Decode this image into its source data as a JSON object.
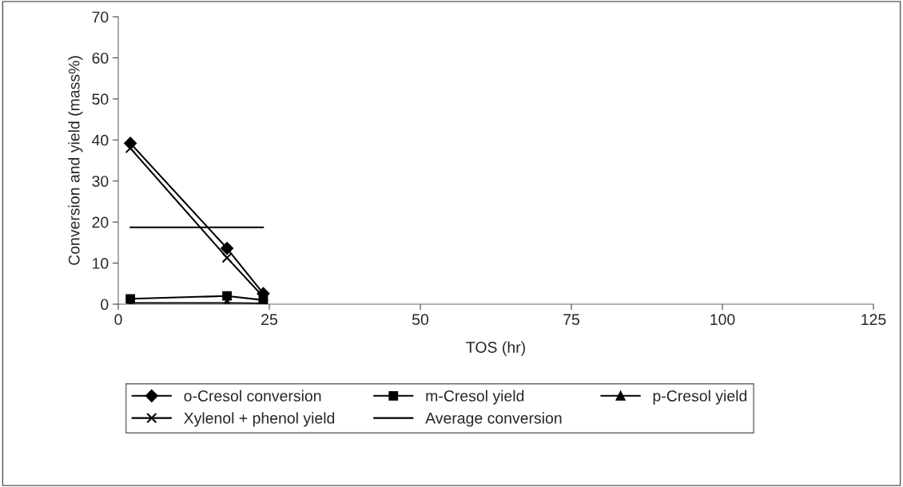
{
  "chart_data": {
    "type": "line",
    "xlabel": "TOS (hr)",
    "ylabel": "Conversion and yield (mass%)",
    "xlim": [
      0,
      125
    ],
    "xticks": [
      0,
      25,
      50,
      75,
      100,
      125
    ],
    "ylim": [
      0,
      70
    ],
    "yticks": [
      0,
      10,
      20,
      30,
      40,
      50,
      60,
      70
    ],
    "grid": false,
    "legend": "bottom",
    "series": [
      {
        "name": "o-Cresol conversion",
        "color": "#000000",
        "marker": "diamond",
        "x": [
          2,
          18,
          24
        ],
        "values": [
          39.2,
          13.6,
          2.6
        ]
      },
      {
        "name": "m-Cresol yield",
        "color": "#000000",
        "marker": "square",
        "x": [
          2,
          18,
          24
        ],
        "values": [
          1.3,
          2.0,
          1.0
        ]
      },
      {
        "name": "p-Cresol yield",
        "color": "#000000",
        "marker": "triangle",
        "x": [
          2,
          18,
          24
        ],
        "values": [
          0.3,
          0.3,
          0.2
        ]
      },
      {
        "name": "Xylenol + phenol yield",
        "color": "#000000",
        "marker": "cross",
        "x": [
          2,
          18,
          24
        ],
        "values": [
          38.0,
          11.3,
          1.8
        ]
      },
      {
        "name": "Average conversion",
        "color": "#000000",
        "marker": "none",
        "x": [
          2,
          24
        ],
        "values": [
          18.7,
          18.7
        ]
      }
    ]
  }
}
